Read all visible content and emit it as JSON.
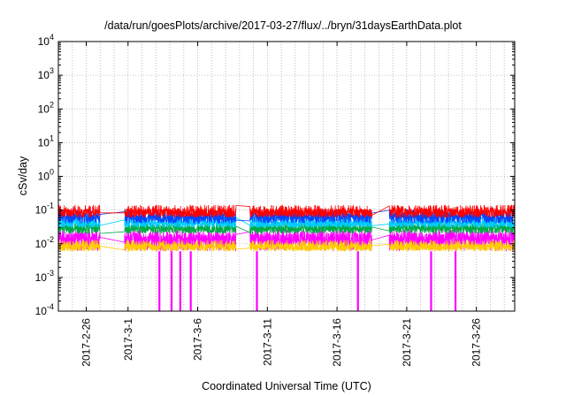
{
  "chart_data": {
    "type": "line",
    "title": "/data/run/goesPlots/archive/2017-03-27/flux/../bryn/31daysEarthData.plot",
    "xlabel": "Coordinated Universal Time (UTC)",
    "ylabel": "cSv/day",
    "y_scale": "log",
    "ylim": [
      0.0001,
      10000
    ],
    "xlim": [
      "2017-02-24",
      "2017-03-28 18:00"
    ],
    "grid": true,
    "legend": "none",
    "x_ticks": [
      "2017-2-26",
      "2017-3-1",
      "2017-3-6",
      "2017-3-11",
      "2017-3-16",
      "2017-3-21",
      "2017-3-26"
    ],
    "y_ticks": [
      {
        "value": 0.0001,
        "label": "10-4",
        "base": "10",
        "exp": "-4"
      },
      {
        "value": 0.001,
        "label": "10-3",
        "base": "10",
        "exp": "-3"
      },
      {
        "value": 0.01,
        "label": "10-2",
        "base": "10",
        "exp": "-2"
      },
      {
        "value": 0.1,
        "label": "10-1",
        "base": "10",
        "exp": "-1"
      },
      {
        "value": 1,
        "label": "100",
        "base": "10",
        "exp": "0"
      },
      {
        "value": 10,
        "label": "101",
        "base": "10",
        "exp": "1"
      },
      {
        "value": 100,
        "label": "102",
        "base": "10",
        "exp": "2"
      },
      {
        "value": 1000,
        "label": "103",
        "base": "10",
        "exp": "3"
      },
      {
        "value": 10000,
        "label": "104",
        "base": "10",
        "exp": "4"
      }
    ],
    "data_segments": [
      {
        "start": "2017-02-24",
        "end": "2017-02-27"
      },
      {
        "start": "2017-02-28 18:00",
        "end": "2017-03-08 18:00"
      },
      {
        "start": "2017-03-09 18:00",
        "end": "2017-03-18 12:00"
      },
      {
        "start": "2017-03-19 18:00",
        "end": "2017-03-28 18:00"
      }
    ],
    "series": [
      {
        "color": "#ff0000",
        "values_typical": [
          0.06,
          0.11
        ]
      },
      {
        "color": "#0044ff",
        "values_typical": [
          0.04,
          0.08
        ]
      },
      {
        "color": "#00ccff",
        "values_typical": [
          0.03,
          0.05
        ]
      },
      {
        "color": "#00aa44",
        "values_typical": [
          0.02,
          0.035
        ]
      },
      {
        "color": "#ffcc00",
        "values_typical": [
          0.006,
          0.01
        ]
      },
      {
        "color": "#ff00ff",
        "values_typical": [
          0.006,
          0.02
        ]
      }
    ],
    "dropouts": [
      "2017-03-03 06:00",
      "2017-03-04 03:00",
      "2017-03-04 18:00",
      "2017-03-05 12:00",
      "2017-03-10 06:00",
      "2017-03-17 12:00",
      "2017-03-22 18:00",
      "2017-03-24 12:00"
    ]
  }
}
